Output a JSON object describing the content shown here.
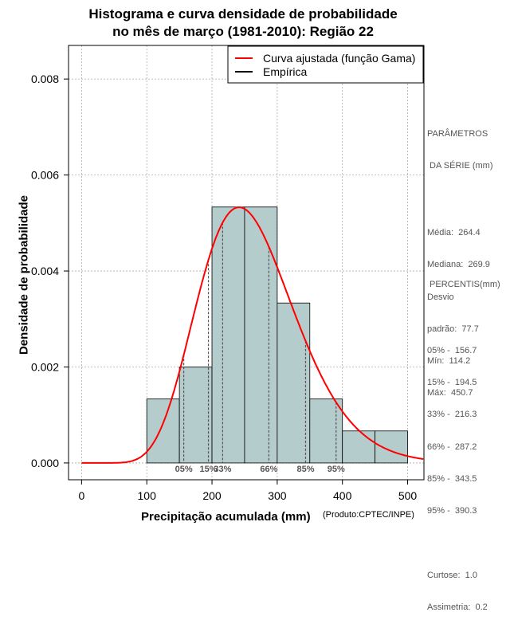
{
  "title_line1": "Histograma e curva densidade de probabilidade",
  "title_line2": "no mês de março (1981-2010): Região 22",
  "credit": "(Produto:CPTEC/INPE)",
  "params": {
    "heading1": "PARÂMETROS",
    "heading2": " DA SÉRIE (mm)",
    "media": "Média:  264.4",
    "mediana": "Mediana:  269.9",
    "desvio1": "Desvio",
    "desvio2": "padrão:  77.7",
    "min": "Mín:  114.2",
    "max": "Máx:  450.7"
  },
  "percentis": {
    "heading": " PERCENTIS(mm)",
    "p05": "05% -  156.7",
    "p15": "15% -  194.5",
    "p33": "33% -  216.3",
    "p66": "66% -  287.2",
    "p85": "85% -  343.5",
    "p95": "95% -  390.3",
    "curtose": "Curtose:  1.0",
    "assimetria": "Assimetria:  0.2"
  },
  "colors": {
    "bar_fill": "#b5cccc",
    "curve": "#ff0000",
    "grid": "#aaaaaa",
    "percentile_line": "#555555"
  },
  "chart_data": {
    "type": "bar",
    "title": "Histograma e curva densidade de probabilidade no mês de março (1981-2010): Região 22",
    "xlabel": "Precipitação acumulada (mm)",
    "ylabel": "Densidade de probabilidade",
    "xlim": [
      -20,
      525
    ],
    "ylim": [
      -0.00035,
      0.0087
    ],
    "x_ticks": [
      0,
      100,
      200,
      300,
      400,
      500
    ],
    "y_ticks": [
      0.0,
      0.002,
      0.004,
      0.006,
      0.008
    ],
    "y_tick_labels": [
      "0.000",
      "0.002",
      "0.004",
      "0.006",
      "0.008"
    ],
    "bins": [
      {
        "x0": 100,
        "x1": 150,
        "density": 0.001333
      },
      {
        "x0": 150,
        "x1": 200,
        "density": 0.002
      },
      {
        "x0": 200,
        "x1": 250,
        "density": 0.005333
      },
      {
        "x0": 250,
        "x1": 300,
        "density": 0.005333
      },
      {
        "x0": 300,
        "x1": 350,
        "density": 0.003333
      },
      {
        "x0": 350,
        "x1": 400,
        "density": 0.001333
      },
      {
        "x0": 400,
        "x1": 450,
        "density": 0.000667
      },
      {
        "x0": 450,
        "x1": 500,
        "density": 0.000667
      }
    ],
    "legend": [
      {
        "label": "Curva ajustada (função Gama)",
        "color": "#ff0000"
      },
      {
        "label": "Empírica",
        "color": "#000000"
      }
    ],
    "legend_position": "top-right",
    "gamma_fit": {
      "shape": 11.57,
      "scale": 22.85
    },
    "percentiles": [
      {
        "label": "05%",
        "value": 156.7
      },
      {
        "label": "15%",
        "value": 194.5
      },
      {
        "label": "33%",
        "value": 216.3
      },
      {
        "label": "66%",
        "value": 287.2
      },
      {
        "label": "85%",
        "value": 343.5
      },
      {
        "label": "95%",
        "value": 390.3
      }
    ],
    "grid": true
  }
}
